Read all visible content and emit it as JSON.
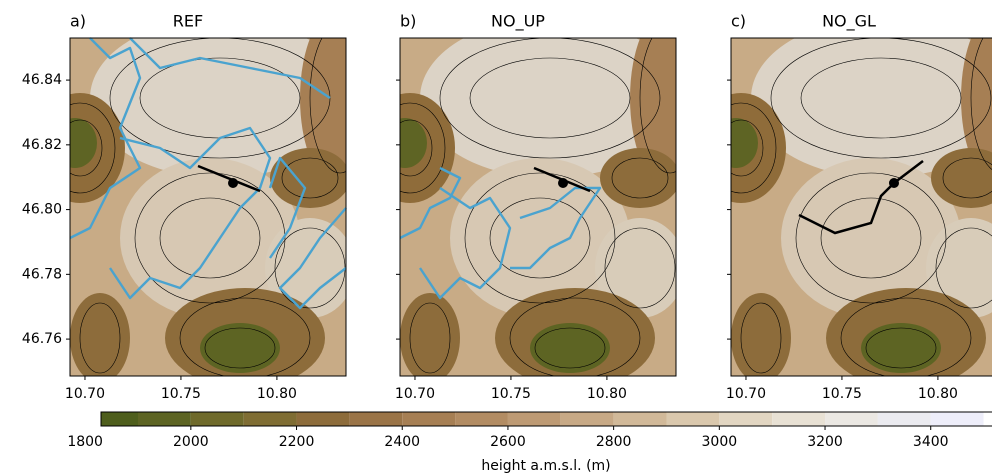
{
  "chart_data": [
    {
      "type": "map",
      "panel_label": "a)",
      "title": "REF",
      "xlim": [
        10.6922,
        10.836
      ],
      "ylim": [
        46.7486,
        46.853
      ],
      "xticks": [
        {
          "value": 10.7,
          "label": "10.70"
        },
        {
          "value": 10.75,
          "label": "10.75"
        },
        {
          "value": 10.8,
          "label": "10.80"
        }
      ],
      "yticks": [
        {
          "value": 46.76,
          "label": "46.76"
        },
        {
          "value": 46.78,
          "label": "46.78"
        },
        {
          "value": 46.8,
          "label": "46.80"
        },
        {
          "value": 46.82,
          "label": "46.82"
        },
        {
          "value": 46.84,
          "label": "46.84"
        }
      ]
    },
    {
      "type": "map",
      "panel_label": "b)",
      "title": "NO_UP",
      "xlim": [
        10.6922,
        10.836
      ],
      "ylim": [
        46.7486,
        46.853
      ],
      "xticks": [
        {
          "value": 10.7,
          "label": "10.70"
        },
        {
          "value": 10.75,
          "label": "10.75"
        },
        {
          "value": 10.8,
          "label": "10.80"
        }
      ],
      "yticks": [
        46.76,
        46.78,
        46.8,
        46.82,
        46.84
      ]
    },
    {
      "type": "map",
      "panel_label": "c)",
      "title": "NO_GL",
      "xlim": [
        10.6922,
        10.836
      ],
      "ylim": [
        46.7486,
        46.853
      ],
      "xticks": [
        {
          "value": 10.7,
          "label": "10.70"
        },
        {
          "value": 10.75,
          "label": "10.75"
        },
        {
          "value": 10.8,
          "label": "10.80"
        }
      ],
      "yticks": [
        46.76,
        46.78,
        46.8,
        46.82,
        46.84
      ]
    },
    {
      "type": "colorbar",
      "label": "height a.m.s.l. (m)",
      "xlim": [
        1830,
        3550
      ],
      "xticks": [
        1800,
        2000,
        2200,
        2400,
        2600,
        2800,
        3000,
        3200,
        3400
      ],
      "bounds": [
        1800,
        1900,
        2000,
        2100,
        2200,
        2300,
        2400,
        2500,
        2600,
        2700,
        2800,
        2900,
        3000,
        3100,
        3200,
        3300,
        3400,
        3500
      ],
      "colors": [
        "#4e5e1c",
        "#5d6423",
        "#6f6a2b",
        "#7f6d33",
        "#8d6c3b",
        "#9a7447",
        "#a67f54",
        "#b28c63",
        "#bd9a74",
        "#c7a986",
        "#d1b999",
        "#dac8ad",
        "#e2d6c2",
        "#e8e1d4",
        "#ebe8e3",
        "#ebebf0",
        "#eeeefa"
      ]
    }
  ]
}
